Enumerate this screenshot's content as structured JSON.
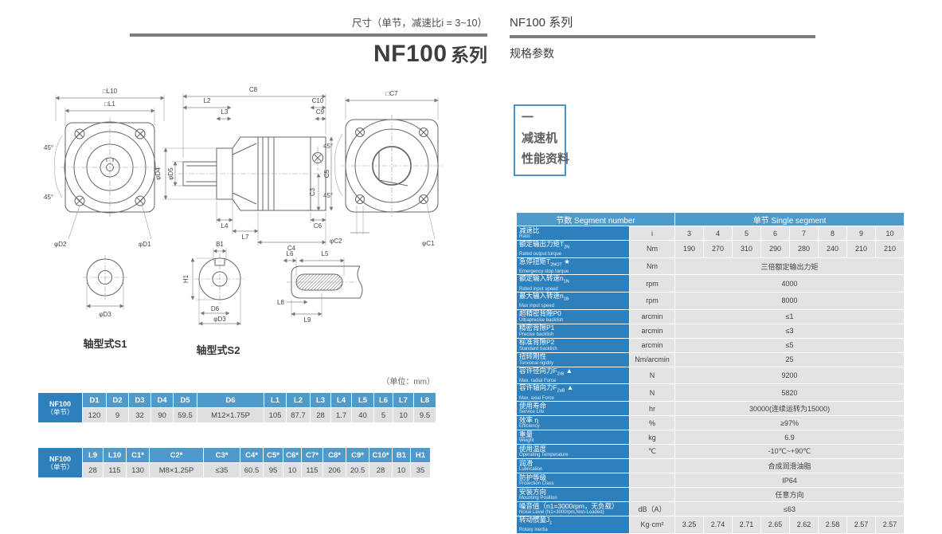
{
  "left_header": {
    "dimension_note": "尺寸（单节，减速比i = 3~10）",
    "title_model": "NF100",
    "title_series": "系列"
  },
  "right_header": {
    "series": "NF100 系列",
    "subtitle": "规格参数"
  },
  "side_box": {
    "line1": "一",
    "line2": "减速机",
    "line3": "性能资料"
  },
  "unit_note": "（单位：mm）",
  "drawings": {
    "front_view": {
      "dim_l10": "□L10",
      "dim_l1": "□L1",
      "angle_top": "45°",
      "angle_bottom": "45°",
      "dim_d2": "φD2",
      "dim_d1": "φD1"
    },
    "section_view": {
      "dim_c8": "C8",
      "dim_l2": "L2",
      "dim_l3": "L3",
      "dim_c10": "C10",
      "dim_c9": "C9",
      "dim_d4": "φD4",
      "dim_d5": "φD5",
      "dim_c3": "C3",
      "dim_c5": "C5",
      "dim_l4": "L4",
      "dim_l7": "L7",
      "dim_c6": "C6",
      "dim_c4": "C4"
    },
    "rear_view": {
      "dim_c7": "□C7",
      "angle_top": "45°",
      "angle_bottom": "45°",
      "dim_c2": "φC2",
      "dim_c1": "φC1"
    },
    "shaft_s1": {
      "caption": "轴型式S1",
      "dim_d3": "φD3"
    },
    "shaft_s2": {
      "caption": "轴型式S2",
      "dim_b1": "B1",
      "dim_h1": "H1",
      "dim_d6": "D6",
      "dim_d3": "φD3"
    },
    "key_detail": {
      "dim_l6": "L6",
      "dim_l5": "L5",
      "dim_l8": "L8",
      "dim_l9": "L9"
    }
  },
  "dim_table_1": {
    "row_header": {
      "line1": "NF100",
      "line2": "（单节）"
    },
    "columns": [
      "D1",
      "D2",
      "D3",
      "D4",
      "D5",
      "D6",
      "L1",
      "L2",
      "L3",
      "L4",
      "L5",
      "L6",
      "L7",
      "L8"
    ],
    "values": [
      "120",
      "9",
      "32",
      "90",
      "59.5",
      "M12×1.75P",
      "105",
      "87.7",
      "28",
      "1.7",
      "40",
      "5",
      "10",
      "9.5"
    ]
  },
  "dim_table_2": {
    "row_header": {
      "line1": "NF100",
      "line2": "（单节）"
    },
    "columns": [
      "L9",
      "L10",
      "C1*",
      "C2*",
      "C3*",
      "C4*",
      "C5*",
      "C6*",
      "C7*",
      "C8*",
      "C9*",
      "C10*",
      "B1",
      "H1"
    ],
    "values": [
      "28",
      "115",
      "130",
      "M8×1.25P",
      "≤35",
      "60.5",
      "95",
      "10",
      "115",
      "206",
      "20.5",
      "28",
      "10",
      "35"
    ]
  },
  "spec_table": {
    "header": {
      "left": "节数 Segment number",
      "right": "单节 Single segment"
    },
    "rows": [
      {
        "cn": "减速比",
        "en": "Ratio",
        "unit": "i",
        "values": [
          "3",
          "4",
          "5",
          "6",
          "7",
          "8",
          "9",
          "10"
        ]
      },
      {
        "cn": "额定输出力矩T",
        "sub": "2N",
        "en": "Rated output torque",
        "unit": "Nm",
        "values": [
          "190",
          "270",
          "310",
          "290",
          "280",
          "240",
          "210",
          "210"
        ]
      },
      {
        "cn": "急停扭矩T",
        "sub": "2NOT",
        "tail": " ★",
        "en": "Emergency stop torque",
        "unit": "Nm",
        "span": "三倍额定输出力矩"
      },
      {
        "cn": "额定输入转速n",
        "sub": "1N",
        "en": "Rated input speed",
        "unit": "rpm",
        "span": "4000"
      },
      {
        "cn": "最大输入转速n",
        "sub": "1B",
        "en": "Max input speed",
        "unit": "rpm",
        "span": "8000"
      },
      {
        "cn": "超精密背隙P0",
        "en": "Ultraprecise backlish",
        "unit": "arcmin",
        "span": "≤1"
      },
      {
        "cn": "精密背隙P1",
        "en": "Precise backlish",
        "unit": "arcmin",
        "span": "≤3"
      },
      {
        "cn": "标准背隙P2",
        "en": "Standard backlish",
        "unit": "arcmin",
        "span": "≤5"
      },
      {
        "cn": "扭转刚性",
        "en": "Torsional rigidity",
        "unit": "Nm/arcmin",
        "span": "25"
      },
      {
        "cn": "容许径向力F",
        "sub": "2rB",
        "tail": " ▲",
        "en": "Max. radial Force",
        "unit": "N",
        "span": "9200"
      },
      {
        "cn": "容许轴向力F",
        "sub": "2aB",
        "tail": " ▲",
        "en": "Max. axial Force",
        "unit": "N",
        "span": "5820"
      },
      {
        "cn": "使用寿命",
        "en": "Service Life",
        "unit": "hr",
        "span": "30000(连续运转为15000)"
      },
      {
        "cn": "效率 η",
        "en": "Efficiency",
        "unit": "%",
        "span": "≥97%"
      },
      {
        "cn": "重量",
        "en": "Weight",
        "unit": "kg",
        "span": "6.9"
      },
      {
        "cn": "使用温度",
        "en": "Operating Temperature",
        "unit": "℃",
        "span": "-10℃~+90℃"
      },
      {
        "cn": "润滑",
        "en": "Lubrication",
        "unit": "",
        "span": "合成润滑油脂"
      },
      {
        "cn": "防护等级",
        "en": "Protection Class",
        "unit": "",
        "span": "IP64"
      },
      {
        "cn": "安装方向",
        "en": "Mounting Position",
        "unit": "",
        "span": "任意方向"
      },
      {
        "cn": "噪音值（n1=3000rpm，无负载）",
        "en": "Noise Level (N1=3000rpm,Non-Loaded)",
        "unit": "dB（A）",
        "span": "≤63"
      },
      {
        "cn": "转动惯量J",
        "sub": "1",
        "en": "Rotary inertia",
        "unit": "Kg·cm²",
        "values": [
          "3.25",
          "2.74",
          "2.71",
          "2.65",
          "2.62",
          "2.58",
          "2.57",
          "2.57"
        ]
      }
    ]
  },
  "colors": {
    "header_blue": "#4e9aca",
    "label_blue": "#2e80bd",
    "cell_gray": "#e3e3e5",
    "rule_gray": "#7d7d7d",
    "accent_blue": "#4c93c8"
  }
}
